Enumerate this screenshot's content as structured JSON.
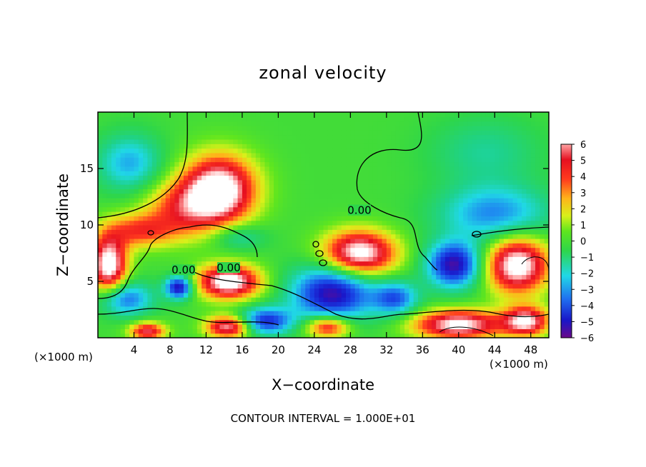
{
  "chart_data": {
    "type": "heatmap",
    "title": "zonal velocity",
    "xlabel": "X−coordinate",
    "ylabel": "Z−coordinate",
    "x_unit_left": "(×1000 m)",
    "x_unit_right": "(×1000 m)",
    "xlim": [
      0,
      50
    ],
    "ylim": [
      0,
      20
    ],
    "xticks": [
      4,
      8,
      12,
      16,
      20,
      24,
      28,
      32,
      36,
      40,
      44,
      48
    ],
    "yticks": [
      5,
      10,
      15
    ],
    "colorbar": {
      "ticks": [
        "6",
        "5",
        "4",
        "3",
        "2",
        "1",
        "0",
        "−1",
        "−2",
        "−3",
        "−4",
        "−5",
        "−6"
      ],
      "range": [
        -6,
        6
      ]
    },
    "contour_labels": [
      {
        "text": "0.00",
        "x": 29,
        "y": 11.3
      },
      {
        "text": "0.00",
        "x": 9.5,
        "y": 6.0
      },
      {
        "text": "0.00",
        "x": 14.5,
        "y": 6.2
      }
    ],
    "blobs": [
      {
        "x": 13.5,
        "y": 13.2,
        "rx": 4.0,
        "ry": 3.0,
        "v": 7
      },
      {
        "x": 9.5,
        "y": 11.5,
        "rx": 4.5,
        "ry": 2.5,
        "v": 3.5
      },
      {
        "x": 4.5,
        "y": 9.5,
        "rx": 4.0,
        "ry": 1.5,
        "v": 3.5
      },
      {
        "x": 1.2,
        "y": 6.5,
        "rx": 2.0,
        "ry": 2.5,
        "v": 7
      },
      {
        "x": 14.5,
        "y": 5.0,
        "rx": 3.5,
        "ry": 1.5,
        "v": 7
      },
      {
        "x": 29.0,
        "y": 7.5,
        "rx": 4.0,
        "ry": 2.0,
        "v": 7
      },
      {
        "x": 46.5,
        "y": 6.5,
        "rx": 3.5,
        "ry": 2.5,
        "v": 7
      },
      {
        "x": 40.0,
        "y": 1.2,
        "rx": 5.0,
        "ry": 1.3,
        "v": 6.5
      },
      {
        "x": 47.5,
        "y": 1.5,
        "rx": 2.5,
        "ry": 1.3,
        "v": 6
      },
      {
        "x": 25.5,
        "y": 1.0,
        "rx": 2.5,
        "ry": 1.0,
        "v": 5
      },
      {
        "x": 14.5,
        "y": 1.0,
        "rx": 2.5,
        "ry": 1.0,
        "v": 6
      },
      {
        "x": 5.5,
        "y": 0.6,
        "rx": 2.0,
        "ry": 0.8,
        "v": 5
      },
      {
        "x": 9.0,
        "y": 4.5,
        "rx": 1.5,
        "ry": 1.0,
        "v": -6
      },
      {
        "x": 26.0,
        "y": 4.0,
        "rx": 4.5,
        "ry": 2.5,
        "v": -6
      },
      {
        "x": 39.5,
        "y": 6.5,
        "rx": 3.0,
        "ry": 2.0,
        "v": -6
      },
      {
        "x": 33.0,
        "y": 3.5,
        "rx": 2.5,
        "ry": 1.5,
        "v": -4
      },
      {
        "x": 18.5,
        "y": 1.5,
        "rx": 3.0,
        "ry": 1.2,
        "v": -5
      },
      {
        "x": 3.0,
        "y": 3.5,
        "rx": 3.0,
        "ry": 1.5,
        "v": -4
      },
      {
        "x": 44.0,
        "y": 11.0,
        "rx": 6.0,
        "ry": 2.5,
        "v": -3.5
      },
      {
        "x": 3.5,
        "y": 15.5,
        "rx": 3.5,
        "ry": 2.5,
        "v": -3
      },
      {
        "x": 15.5,
        "y": 9.0,
        "rx": 3.0,
        "ry": 1.2,
        "v": -2
      },
      {
        "x": 43.0,
        "y": 16.5,
        "rx": 6.0,
        "ry": 3.0,
        "v": -1.5
      }
    ],
    "background_value": 0.4
  },
  "footer": "CONTOUR INTERVAL = 1.000E+01"
}
